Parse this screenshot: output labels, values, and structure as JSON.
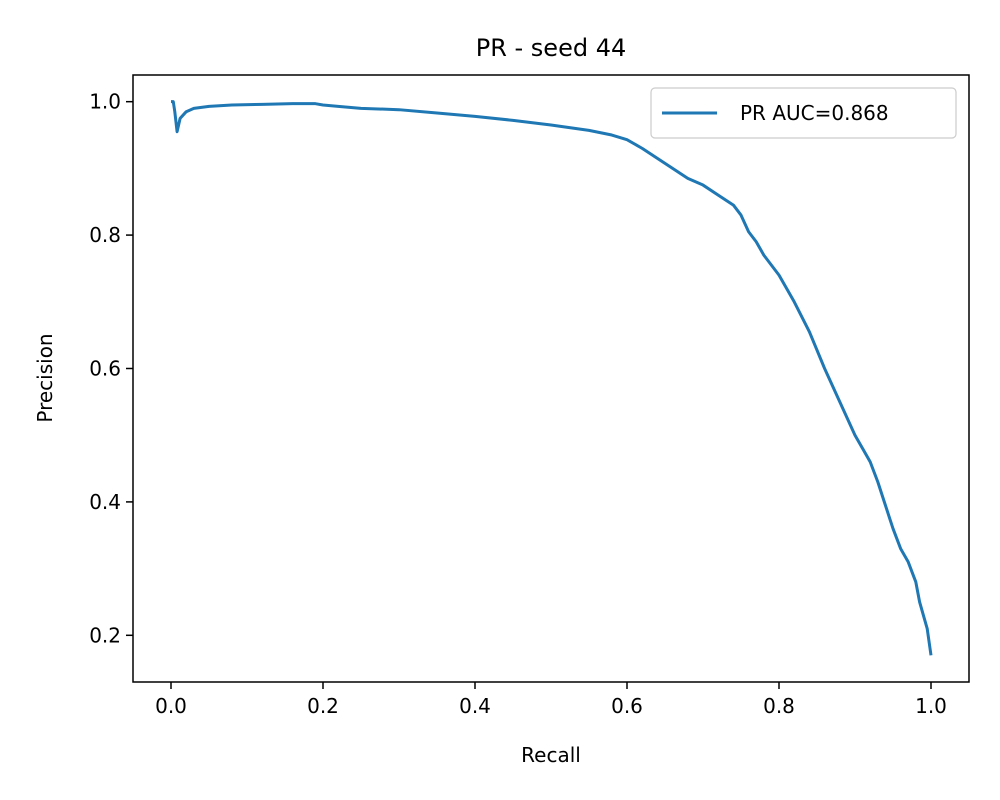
{
  "chart_data": {
    "type": "line",
    "title": "PR - seed 44",
    "xlabel": "Recall",
    "ylabel": "Precision",
    "xlim": [
      -0.05,
      1.05
    ],
    "ylim": [
      0.13,
      1.04
    ],
    "x_ticks": [
      0.0,
      0.2,
      0.4,
      0.6,
      0.8,
      1.0
    ],
    "x_tick_labels": [
      "0.0",
      "0.2",
      "0.4",
      "0.6",
      "0.8",
      "1.0"
    ],
    "y_ticks": [
      0.2,
      0.4,
      0.6,
      0.8,
      1.0
    ],
    "y_tick_labels": [
      "0.2",
      "0.4",
      "0.6",
      "0.8",
      "1.0"
    ],
    "grid": false,
    "legend_position": "top-right",
    "series": [
      {
        "name": "PR AUC=0.868",
        "color": "#1f77b4",
        "x": [
          0.0,
          0.003,
          0.005,
          0.008,
          0.012,
          0.02,
          0.03,
          0.05,
          0.08,
          0.12,
          0.16,
          0.19,
          0.2,
          0.22,
          0.25,
          0.3,
          0.35,
          0.4,
          0.45,
          0.5,
          0.55,
          0.58,
          0.6,
          0.62,
          0.64,
          0.66,
          0.68,
          0.7,
          0.72,
          0.74,
          0.75,
          0.76,
          0.77,
          0.78,
          0.8,
          0.82,
          0.84,
          0.86,
          0.88,
          0.9,
          0.91,
          0.92,
          0.93,
          0.94,
          0.95,
          0.96,
          0.97,
          0.98,
          0.985,
          0.99,
          0.995,
          1.0
        ],
        "y": [
          1.0,
          1.0,
          0.985,
          0.955,
          0.975,
          0.985,
          0.99,
          0.993,
          0.995,
          0.996,
          0.997,
          0.997,
          0.995,
          0.993,
          0.99,
          0.988,
          0.983,
          0.978,
          0.972,
          0.965,
          0.957,
          0.95,
          0.943,
          0.93,
          0.915,
          0.9,
          0.885,
          0.875,
          0.86,
          0.845,
          0.83,
          0.805,
          0.79,
          0.77,
          0.74,
          0.7,
          0.655,
          0.6,
          0.55,
          0.5,
          0.48,
          0.46,
          0.43,
          0.395,
          0.36,
          0.33,
          0.31,
          0.28,
          0.25,
          0.23,
          0.21,
          0.17
        ]
      }
    ]
  }
}
